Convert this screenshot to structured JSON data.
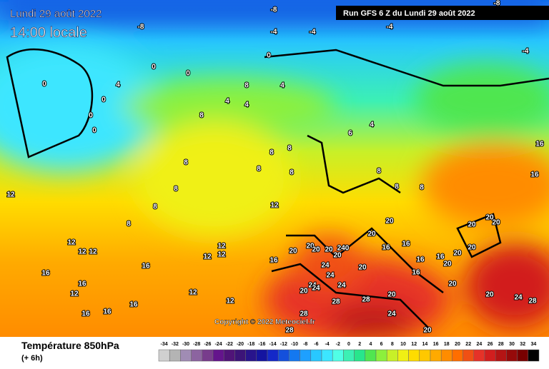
{
  "header": {
    "date": "Lundi 29 août 2022",
    "time": "14:00 locale",
    "run": "Run GFS 6 Z du Lundi 29 août 2022"
  },
  "footer": {
    "title": "Température 850hPa",
    "step": "(+ 6h)",
    "copyright": "Copyright © 2022 Meteociel.fr"
  },
  "scale": {
    "labels": [
      -34,
      -32,
      -30,
      -28,
      -26,
      -24,
      -22,
      -20,
      -18,
      -16,
      -14,
      -12,
      -10,
      -8,
      -6,
      -4,
      -2,
      0,
      2,
      4,
      6,
      8,
      10,
      12,
      14,
      16,
      18,
      20,
      22,
      24,
      26,
      28,
      30,
      32,
      34
    ],
    "colors": [
      "#d0d0d0",
      "#b4b4b4",
      "#a08cb4",
      "#8c64a0",
      "#783c8c",
      "#64148c",
      "#501478",
      "#3c1478",
      "#28148c",
      "#1414a0",
      "#1428c8",
      "#1450dc",
      "#1478f0",
      "#1ea0ff",
      "#28c8ff",
      "#3ce6ff",
      "#50ffe6",
      "#3cf0b4",
      "#28e68c",
      "#50e650",
      "#8cf03c",
      "#c8f028",
      "#f0f014",
      "#ffdc00",
      "#ffc800",
      "#ffaa00",
      "#ff8c00",
      "#ff6e00",
      "#f05014",
      "#e63228",
      "#d21e1e",
      "#b41414",
      "#960a0a",
      "#780000",
      "#000000"
    ]
  },
  "contour_labels": [
    "-8",
    "-8",
    "-4",
    "-4",
    "-4",
    "-8",
    "-4",
    "0",
    "0",
    "0",
    "0",
    "0",
    "0",
    "0",
    "4",
    "4",
    "8",
    "4",
    "4",
    "8",
    "6",
    "4",
    "8",
    "8",
    "8",
    "8",
    "8",
    "8",
    "8",
    "8",
    "12",
    "12",
    "12",
    "12",
    "12",
    "12",
    "12",
    "12",
    "16",
    "16",
    "16",
    "12",
    "12",
    "16",
    "16",
    "16",
    "12",
    "16",
    "20",
    "20",
    "20",
    "20",
    "20",
    "240",
    "20",
    "24",
    "24",
    "24",
    "20",
    "24",
    "24",
    "20",
    "16",
    "16",
    "16",
    "16",
    "16",
    "20",
    "20",
    "20",
    "20",
    "20",
    "20",
    "16",
    "16",
    "20",
    "20",
    "24",
    "28",
    "20",
    "28",
    "28",
    "28",
    "24",
    "28",
    "20",
    "20",
    "8",
    "8",
    "8"
  ]
}
